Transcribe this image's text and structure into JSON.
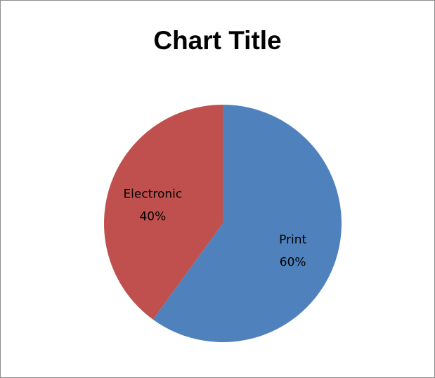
{
  "chart_data": {
    "type": "pie",
    "title": "Chart Title",
    "categories": [
      "Print",
      "Electronic"
    ],
    "values": [
      60,
      40
    ],
    "value_labels": [
      "60%",
      "40%"
    ],
    "colors": [
      "#4f81bd",
      "#c0504d"
    ],
    "legend": "none"
  }
}
